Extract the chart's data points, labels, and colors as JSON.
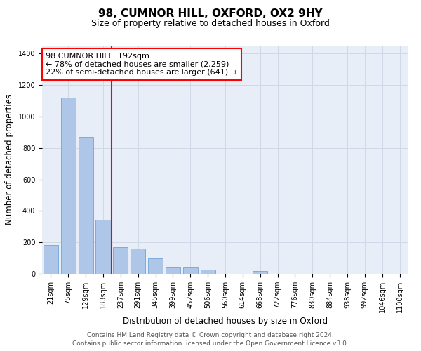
{
  "title_line1": "98, CUMNOR HILL, OXFORD, OX2 9HY",
  "title_line2": "Size of property relative to detached houses in Oxford",
  "xlabel": "Distribution of detached houses by size in Oxford",
  "ylabel": "Number of detached properties",
  "categories": [
    "21sqm",
    "75sqm",
    "129sqm",
    "183sqm",
    "237sqm",
    "291sqm",
    "345sqm",
    "399sqm",
    "452sqm",
    "506sqm",
    "560sqm",
    "614sqm",
    "668sqm",
    "722sqm",
    "776sqm",
    "830sqm",
    "884sqm",
    "938sqm",
    "992sqm",
    "1046sqm",
    "1100sqm"
  ],
  "values": [
    185,
    1120,
    870,
    345,
    170,
    160,
    100,
    40,
    40,
    25,
    0,
    0,
    20,
    0,
    0,
    0,
    0,
    0,
    0,
    0,
    0
  ],
  "bar_color": "#aec6e8",
  "bar_edge_color": "#5b9bd5",
  "vline_x": 3.5,
  "annotation_text": "98 CUMNOR HILL: 192sqm\n← 78% of detached houses are smaller (2,259)\n22% of semi-detached houses are larger (641) →",
  "annotation_box_color": "white",
  "annotation_box_edge_color": "red",
  "vline_color": "red",
  "ylim": [
    0,
    1450
  ],
  "yticks": [
    0,
    200,
    400,
    600,
    800,
    1000,
    1200,
    1400
  ],
  "grid_color": "#d0d8e8",
  "background_color": "#e8eef8",
  "footer_line1": "Contains HM Land Registry data © Crown copyright and database right 2024.",
  "footer_line2": "Contains public sector information licensed under the Open Government Licence v3.0.",
  "title_fontsize": 11,
  "subtitle_fontsize": 9,
  "axis_label_fontsize": 8.5,
  "tick_fontsize": 7,
  "annotation_fontsize": 8,
  "footer_fontsize": 6.5
}
